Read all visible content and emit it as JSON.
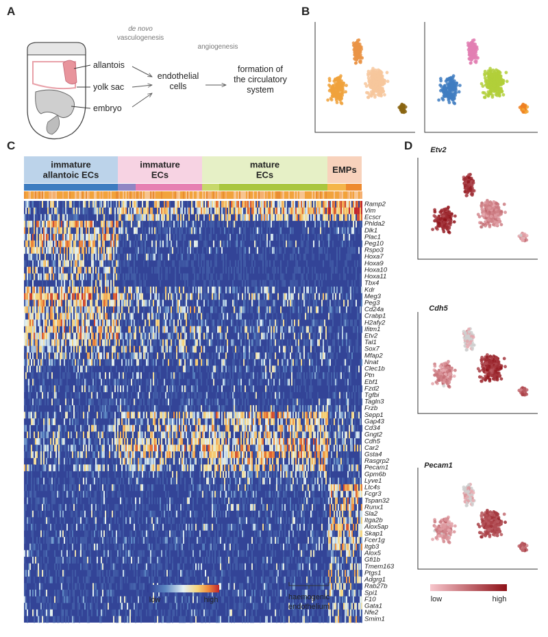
{
  "panel_labels": [
    "A",
    "B",
    "C",
    "D"
  ],
  "panel_a": {
    "de_novo": "de novo",
    "vasculogenesis": "vasculogenesis",
    "angiogenesis": "angiogenesis",
    "sources": [
      "allantois",
      "yolk sac",
      "embryo"
    ],
    "endothelial_cells": [
      "endothelial",
      "cells"
    ],
    "outcome": [
      "formation of",
      "the circulatory",
      "system"
    ]
  },
  "panel_c": {
    "groups": [
      {
        "lines": [
          "immature",
          "allantoic ECs"
        ]
      },
      {
        "lines": [
          "immature",
          "ECs"
        ]
      },
      {
        "lines": [
          "mature",
          "ECs"
        ]
      },
      {
        "lines": [
          "EMPs"
        ]
      }
    ],
    "genes": [
      "Ramp2",
      "Vim",
      "Ecscr",
      "Phlda2",
      "Dlk1",
      "Plac1",
      "Peg10",
      "Rspo3",
      "Hoxa7",
      "Hoxa9",
      "Hoxa10",
      "Hoxa11",
      "Tbx4",
      "Kdr",
      "Meg3",
      "Peg3",
      "Cd24a",
      "Crabp1",
      "H2afy2",
      "Ifitm1",
      "Etv2",
      "Tal1",
      "Sox7",
      "Mfap2",
      "Nnat",
      "Clec1b",
      "Ptn",
      "Ebf1",
      "Fzd2",
      "Tgfbi",
      "Tagln3",
      "Frzb",
      "Sepp1",
      "Gap43",
      "Cd34",
      "Gngt2",
      "Cdh5",
      "Car2",
      "Gsta4",
      "Rasgrp2",
      "Pecam1",
      "Gpm6b",
      "Lyve1",
      "Ltc4s",
      "Fcgr3",
      "Tspan32",
      "Runx1",
      "Sla2",
      "Itga2b",
      "Alox5ap",
      "Skap1",
      "Fcer1g",
      "Itgb3",
      "Alox5",
      "Gfi1b",
      "Tmem163",
      "Ptgs1",
      "Adgrg1",
      "Rab27b",
      "Spi1",
      "F10",
      "Gata1",
      "Nfe2",
      "Smim1"
    ],
    "colorbar": {
      "low": "low",
      "high": "high"
    },
    "annotation": [
      "haemogenic",
      "endothelium"
    ]
  },
  "panel_d": {
    "genes": [
      "Etv2",
      "Cdh5",
      "Pecam1"
    ],
    "colorbar": {
      "low": "low",
      "high": "high"
    }
  }
}
